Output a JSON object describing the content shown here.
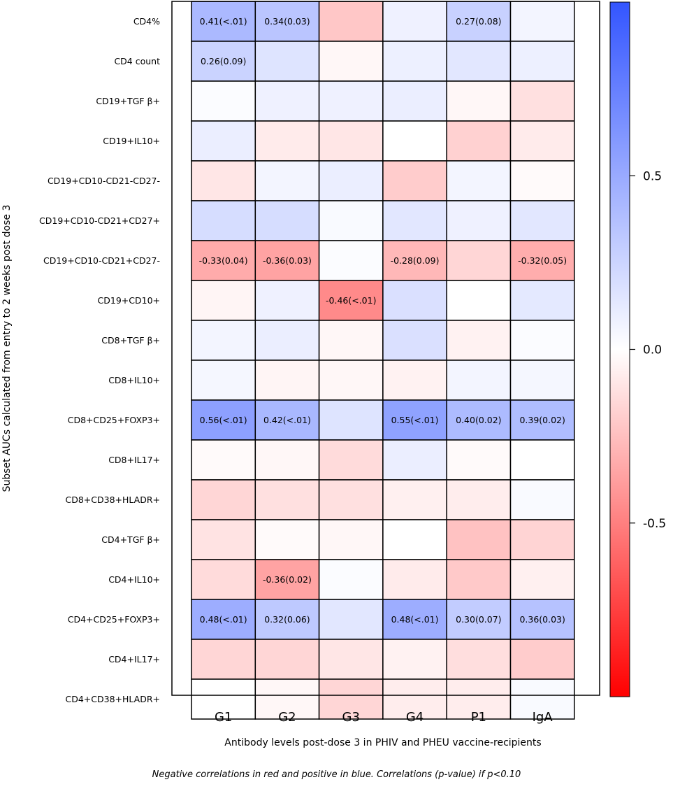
{
  "chart_data": {
    "type": "heatmap",
    "title": "",
    "xlabel": "Antibody levels post-dose 3 in PHIV and PHEU vaccine-recipients",
    "ylabel": "Subset AUCs calculated from entry to 2 weeks post dose 3",
    "columns": [
      "G1",
      "G2",
      "G3",
      "G4",
      "P1",
      "IgA"
    ],
    "rows": [
      {
        "name": "CD4%",
        "values": [
          0.41,
          0.34,
          -0.22,
          0.08,
          0.27,
          0.06
        ],
        "labels": [
          "0.41(<.01)",
          "0.34(0.03)",
          "",
          "",
          "0.27(0.08)",
          ""
        ]
      },
      {
        "name": "CD4 count",
        "values": [
          0.26,
          0.16,
          -0.03,
          0.09,
          0.14,
          0.09
        ],
        "labels": [
          "0.26(0.09)",
          "",
          "",
          "",
          "",
          ""
        ]
      },
      {
        "name": "CD19+TGF β+",
        "values": [
          0.02,
          0.08,
          0.08,
          0.1,
          -0.03,
          -0.12
        ],
        "labels": [
          "",
          "",
          "",
          "",
          "",
          ""
        ]
      },
      {
        "name": "CD19+IL10+",
        "values": [
          0.1,
          -0.08,
          -0.1,
          0.0,
          -0.18,
          -0.08
        ],
        "labels": [
          "",
          "",
          "",
          "",
          "",
          ""
        ]
      },
      {
        "name": "CD19+CD10-CD21-CD27-",
        "values": [
          -0.1,
          0.06,
          0.1,
          -0.2,
          0.06,
          -0.02
        ],
        "labels": [
          "",
          "",
          "",
          "",
          "",
          ""
        ]
      },
      {
        "name": "CD19+CD10-CD21+CD27+",
        "values": [
          0.2,
          0.2,
          0.03,
          0.14,
          0.08,
          0.14
        ],
        "labels": [
          "",
          "",
          "",
          "",
          "",
          ""
        ]
      },
      {
        "name": "CD19+CD10-CD21+CD27-",
        "values": [
          -0.33,
          -0.36,
          0.02,
          -0.28,
          -0.16,
          -0.32
        ],
        "labels": [
          "-0.33(0.04)",
          "-0.36(0.03)",
          "",
          "-0.28(0.09)",
          "",
          "-0.32(0.05)"
        ]
      },
      {
        "name": "CD19+CD10+",
        "values": [
          -0.04,
          0.08,
          -0.46,
          0.18,
          0.0,
          0.13
        ],
        "labels": [
          "",
          "",
          "-0.46(<.01)",
          "",
          "",
          ""
        ]
      },
      {
        "name": "CD8+TGF β+",
        "values": [
          0.06,
          0.1,
          -0.03,
          0.18,
          -0.05,
          0.02
        ],
        "labels": [
          "",
          "",
          "",
          "",
          "",
          ""
        ]
      },
      {
        "name": "CD8+IL10+",
        "values": [
          0.05,
          -0.04,
          -0.03,
          -0.05,
          0.06,
          0.05
        ],
        "labels": [
          "",
          "",
          "",
          "",
          "",
          ""
        ]
      },
      {
        "name": "CD8+CD25+FOXP3+",
        "values": [
          0.56,
          0.42,
          0.16,
          0.55,
          0.4,
          0.39
        ],
        "labels": [
          "0.56(<.01)",
          "0.42(<.01)",
          "",
          "0.55(<.01)",
          "0.40(0.02)",
          "0.39(0.02)"
        ]
      },
      {
        "name": "CD8+IL17+",
        "values": [
          -0.02,
          -0.03,
          -0.14,
          0.1,
          -0.02,
          0.0
        ],
        "labels": [
          "",
          "",
          "",
          "",
          "",
          ""
        ]
      },
      {
        "name": "CD8+CD38+HLADR+",
        "values": [
          -0.16,
          -0.12,
          -0.12,
          -0.06,
          -0.07,
          0.03
        ],
        "labels": [
          "",
          "",
          "",
          "",
          "",
          ""
        ]
      },
      {
        "name": "CD4+TGF β+",
        "values": [
          -0.11,
          -0.02,
          -0.03,
          0.0,
          -0.24,
          -0.17
        ],
        "labels": [
          "",
          "",
          "",
          "",
          "",
          ""
        ]
      },
      {
        "name": "CD4+IL10+",
        "values": [
          -0.14,
          -0.36,
          0.02,
          -0.08,
          -0.21,
          -0.06
        ],
        "labels": [
          "",
          "-0.36(0.02)",
          "",
          "",
          "",
          ""
        ]
      },
      {
        "name": "CD4+CD25+FOXP3+",
        "values": [
          0.48,
          0.32,
          0.14,
          0.48,
          0.3,
          0.36
        ],
        "labels": [
          "0.48(<.01)",
          "0.32(0.06)",
          "",
          "0.48(<.01)",
          "0.30(0.07)",
          "0.36(0.03)"
        ]
      },
      {
        "name": "CD4+IL17+",
        "values": [
          -0.16,
          -0.16,
          -0.1,
          -0.05,
          -0.13,
          -0.2
        ],
        "labels": [
          "",
          "",
          "",
          "",
          "",
          ""
        ]
      },
      {
        "name": "CD4+CD38+HLADR+",
        "values": [
          0.0,
          -0.03,
          -0.16,
          -0.07,
          -0.07,
          0.03
        ],
        "labels": [
          "",
          "",
          "",
          "",
          "",
          ""
        ]
      }
    ],
    "colorbar": {
      "range": [
        -1,
        1
      ],
      "ticks": [
        0.5,
        0.0,
        -0.5
      ],
      "tick_labels": [
        "0.5",
        "0.0",
        "-0.5"
      ],
      "low_color": "#ff0000",
      "mid_color": "#ffffff",
      "high_color": "#3355ff"
    }
  },
  "footnote": "Negative correlations in red and positive in blue.  Correlations (p-value) if p<0.10"
}
